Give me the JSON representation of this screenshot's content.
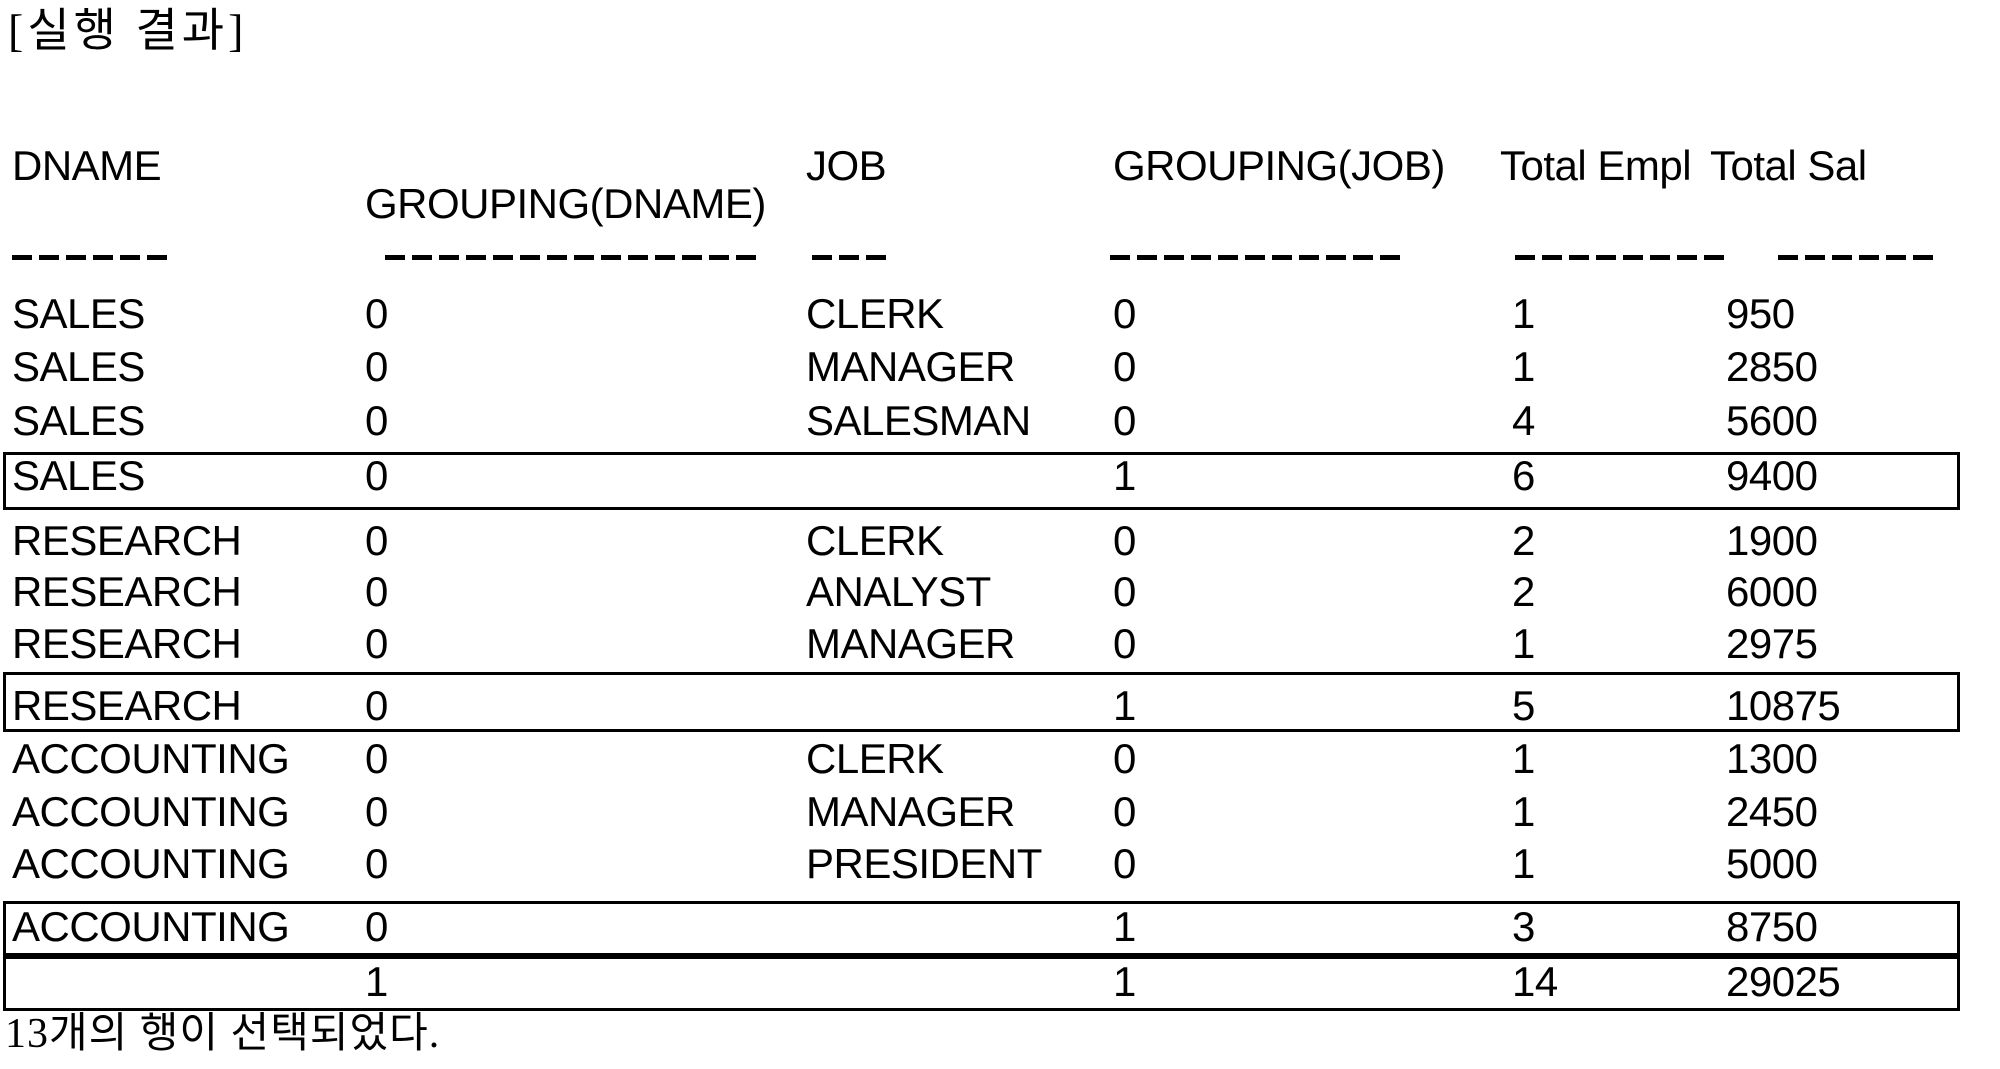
{
  "title": "[실행 결과]",
  "table": {
    "headers": [
      {
        "label": "DNAME",
        "underline": "------"
      },
      {
        "label": "GROUPING(DNAME)",
        "underline": "--------------"
      },
      {
        "label": "JOB",
        "underline": "---"
      },
      {
        "label": "GROUPING(JOB)",
        "underline": "-----------"
      },
      {
        "label": "Total Empl",
        "underline": "--------"
      },
      {
        "label": "Total Sal",
        "underline": "------"
      }
    ],
    "rows": [
      {
        "cells": [
          "SALES",
          "0",
          "CLERK",
          "0",
          "1",
          "950"
        ],
        "boxed": false
      },
      {
        "cells": [
          "SALES",
          "0",
          "MANAGER",
          "0",
          "1",
          "2850"
        ],
        "boxed": false
      },
      {
        "cells": [
          "SALES",
          "0",
          "SALESMAN",
          "0",
          "4",
          "5600"
        ],
        "boxed": false
      },
      {
        "cells": [
          "SALES",
          "0",
          "",
          "1",
          "6",
          "9400"
        ],
        "boxed": true
      },
      {
        "cells": [
          "RESEARCH",
          "0",
          "CLERK",
          "0",
          "2",
          "1900"
        ],
        "boxed": false
      },
      {
        "cells": [
          "RESEARCH",
          "0",
          "ANALYST",
          "0",
          "2",
          "6000"
        ],
        "boxed": false
      },
      {
        "cells": [
          "RESEARCH",
          "0",
          "MANAGER",
          "0",
          "1",
          "2975"
        ],
        "boxed": false
      },
      {
        "cells": [
          "RESEARCH",
          "0",
          "",
          "1",
          "5",
          "10875"
        ],
        "boxed": true
      },
      {
        "cells": [
          "ACCOUNTING",
          "0",
          "CLERK",
          "0",
          "1",
          "1300"
        ],
        "boxed": false
      },
      {
        "cells": [
          "ACCOUNTING",
          "0",
          "MANAGER",
          "0",
          "1",
          "2450"
        ],
        "boxed": false
      },
      {
        "cells": [
          "ACCOUNTING",
          "0",
          "PRESIDENT",
          "0",
          "1",
          "5000"
        ],
        "boxed": false
      },
      {
        "cells": [
          "ACCOUNTING",
          "0",
          "",
          "1",
          "3",
          "8750"
        ],
        "boxed": true
      },
      {
        "cells": [
          "",
          "1",
          "",
          "1",
          "14",
          "29025"
        ],
        "boxed": true
      }
    ]
  },
  "footer_message": "13개의 행이 선택되었다."
}
